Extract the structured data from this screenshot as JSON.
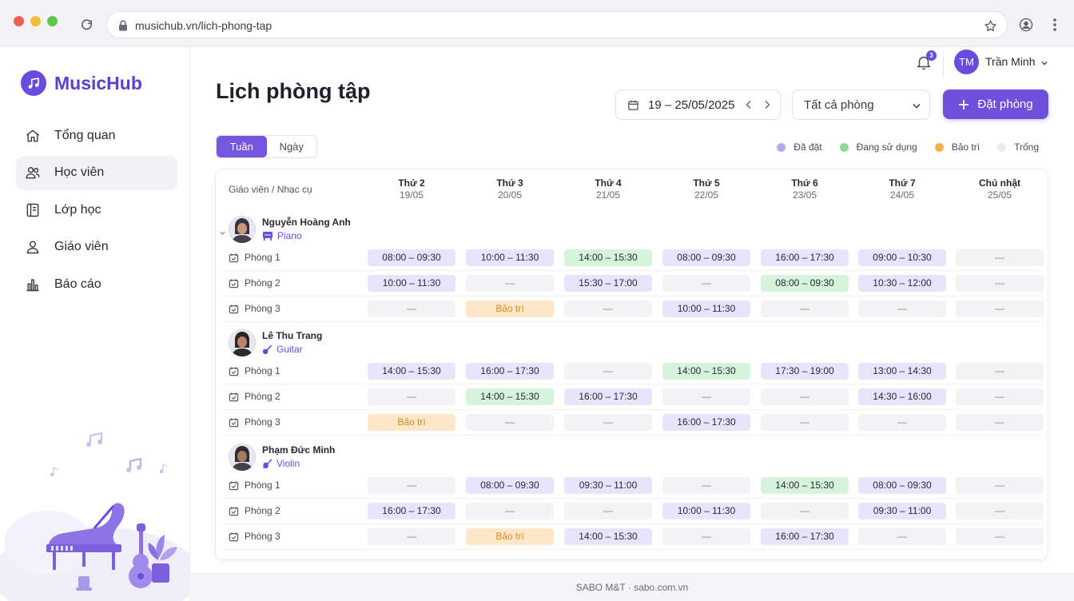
{
  "browser": {
    "url": "musichub.vn/lich-phong-tap"
  },
  "brand": {
    "name": "MusicHub",
    "logo_icon": "music-note-icon"
  },
  "sidebar": {
    "items": [
      {
        "label": "Tổng quan",
        "icon": "home-icon",
        "active": false
      },
      {
        "label": "Học viên",
        "icon": "users-icon",
        "active": true
      },
      {
        "label": "Lớp học",
        "icon": "book-icon",
        "active": false
      },
      {
        "label": "Giáo viên",
        "icon": "user-icon",
        "active": false
      },
      {
        "label": "Báo cáo",
        "icon": "bar-chart-icon",
        "active": false
      }
    ]
  },
  "topbar": {
    "notifications": "3",
    "user_initials": "TM",
    "user_name": "Trần Minh"
  },
  "page": {
    "title": "Lịch phòng tập",
    "date_range": "19 – 25/05/2025",
    "room_filter": "Tất cả phòng",
    "book_button": "Đặt phòng"
  },
  "view_toggle": {
    "week": "Tuần",
    "day": "Ngày",
    "active": "week"
  },
  "legend": [
    {
      "label": "Đã đặt",
      "color": "#b9a9f2"
    },
    {
      "label": "Đang sử dụng",
      "color": "#8ad99a"
    },
    {
      "label": "Bảo trì",
      "color": "#f6b04a"
    },
    {
      "label": "Trống",
      "color": "#ececf0"
    }
  ],
  "table": {
    "header_label": "Giáo viên / Nhạc cụ",
    "days": [
      {
        "name": "Thứ 2",
        "date": "19/05"
      },
      {
        "name": "Thứ 3",
        "date": "20/05"
      },
      {
        "name": "Thứ 4",
        "date": "21/05"
      },
      {
        "name": "Thứ 5",
        "date": "22/05"
      },
      {
        "name": "Thứ 6",
        "date": "23/05"
      },
      {
        "name": "Thứ 7",
        "date": "24/05"
      },
      {
        "name": "Chủ nhật",
        "date": "25/05"
      }
    ],
    "teachers": [
      {
        "name": "Nguyễn Hoàng Anh",
        "instrument": "Piano",
        "rooms": [
          {
            "label": "Phòng 1",
            "slots": [
              {
                "text": "08:00 – 09:30",
                "status": "booked"
              },
              {
                "text": "10:00 – 11:30",
                "status": "booked"
              },
              {
                "text": "14:00 – 15:30",
                "status": "inuse"
              },
              {
                "text": "08:00 – 09:30",
                "status": "booked"
              },
              {
                "text": "16:00 – 17:30",
                "status": "booked"
              },
              {
                "text": "09:00 – 10:30",
                "status": "booked"
              },
              {
                "text": "—",
                "status": "empty"
              }
            ]
          },
          {
            "label": "Phòng 2",
            "slots": [
              {
                "text": "10:00 – 11:30",
                "status": "booked"
              },
              {
                "text": "—",
                "status": "empty"
              },
              {
                "text": "15:30 – 17:00",
                "status": "booked"
              },
              {
                "text": "—",
                "status": "empty"
              },
              {
                "text": "08:00 – 09:30",
                "status": "inuse"
              },
              {
                "text": "10:30 – 12:00",
                "status": "booked"
              },
              {
                "text": "—",
                "status": "empty"
              }
            ]
          },
          {
            "label": "Phòng 3",
            "slots": [
              {
                "text": "—",
                "status": "empty"
              },
              {
                "text": "Bảo trì",
                "status": "maint"
              },
              {
                "text": "—",
                "status": "empty"
              },
              {
                "text": "10:00 – 11:30",
                "status": "booked"
              },
              {
                "text": "—",
                "status": "empty"
              },
              {
                "text": "—",
                "status": "empty"
              },
              {
                "text": "—",
                "status": "empty"
              }
            ]
          }
        ]
      },
      {
        "name": "Lê Thu Trang",
        "instrument": "Guitar",
        "rooms": [
          {
            "label": "Phòng 1",
            "slots": [
              {
                "text": "14:00 – 15:30",
                "status": "booked"
              },
              {
                "text": "16:00 – 17:30",
                "status": "booked"
              },
              {
                "text": "—",
                "status": "empty"
              },
              {
                "text": "14:00 – 15:30",
                "status": "inuse"
              },
              {
                "text": "17:30 – 19:00",
                "status": "booked"
              },
              {
                "text": "13:00 – 14:30",
                "status": "booked"
              },
              {
                "text": "—",
                "status": "empty"
              }
            ]
          },
          {
            "label": "Phòng 2",
            "slots": [
              {
                "text": "—",
                "status": "empty"
              },
              {
                "text": "14:00 – 15:30",
                "status": "inuse"
              },
              {
                "text": "16:00 – 17:30",
                "status": "booked"
              },
              {
                "text": "—",
                "status": "empty"
              },
              {
                "text": "—",
                "status": "empty"
              },
              {
                "text": "14:30 – 16:00",
                "status": "booked"
              },
              {
                "text": "—",
                "status": "empty"
              }
            ]
          },
          {
            "label": "Phòng 3",
            "slots": [
              {
                "text": "Bảo trì",
                "status": "maint"
              },
              {
                "text": "—",
                "status": "empty"
              },
              {
                "text": "—",
                "status": "empty"
              },
              {
                "text": "16:00 – 17:30",
                "status": "booked"
              },
              {
                "text": "—",
                "status": "empty"
              },
              {
                "text": "—",
                "status": "empty"
              },
              {
                "text": "—",
                "status": "empty"
              }
            ]
          }
        ]
      },
      {
        "name": "Phạm Đức Minh",
        "instrument": "Violin",
        "rooms": [
          {
            "label": "Phòng 1",
            "slots": [
              {
                "text": "—",
                "status": "empty"
              },
              {
                "text": "08:00 – 09:30",
                "status": "booked"
              },
              {
                "text": "09:30 – 11:00",
                "status": "booked"
              },
              {
                "text": "—",
                "status": "empty"
              },
              {
                "text": "14:00 – 15:30",
                "status": "inuse"
              },
              {
                "text": "08:00 – 09:30",
                "status": "booked"
              },
              {
                "text": "—",
                "status": "empty"
              }
            ]
          },
          {
            "label": "Phòng 2",
            "slots": [
              {
                "text": "16:00 – 17:30",
                "status": "booked"
              },
              {
                "text": "—",
                "status": "empty"
              },
              {
                "text": "—",
                "status": "empty"
              },
              {
                "text": "10:00 – 11:30",
                "status": "booked"
              },
              {
                "text": "—",
                "status": "empty"
              },
              {
                "text": "09:30 – 11:00",
                "status": "booked"
              },
              {
                "text": "—",
                "status": "empty"
              }
            ]
          },
          {
            "label": "Phòng 3",
            "slots": [
              {
                "text": "—",
                "status": "empty"
              },
              {
                "text": "Bảo trì",
                "status": "maint"
              },
              {
                "text": "14:00 – 15:30",
                "status": "booked"
              },
              {
                "text": "—",
                "status": "empty"
              },
              {
                "text": "16:00 – 17:30",
                "status": "booked"
              },
              {
                "text": "—",
                "status": "empty"
              },
              {
                "text": "—",
                "status": "empty"
              }
            ]
          }
        ]
      }
    ]
  },
  "footer": {
    "text": "SABO M&T · sabo.com.vn"
  }
}
